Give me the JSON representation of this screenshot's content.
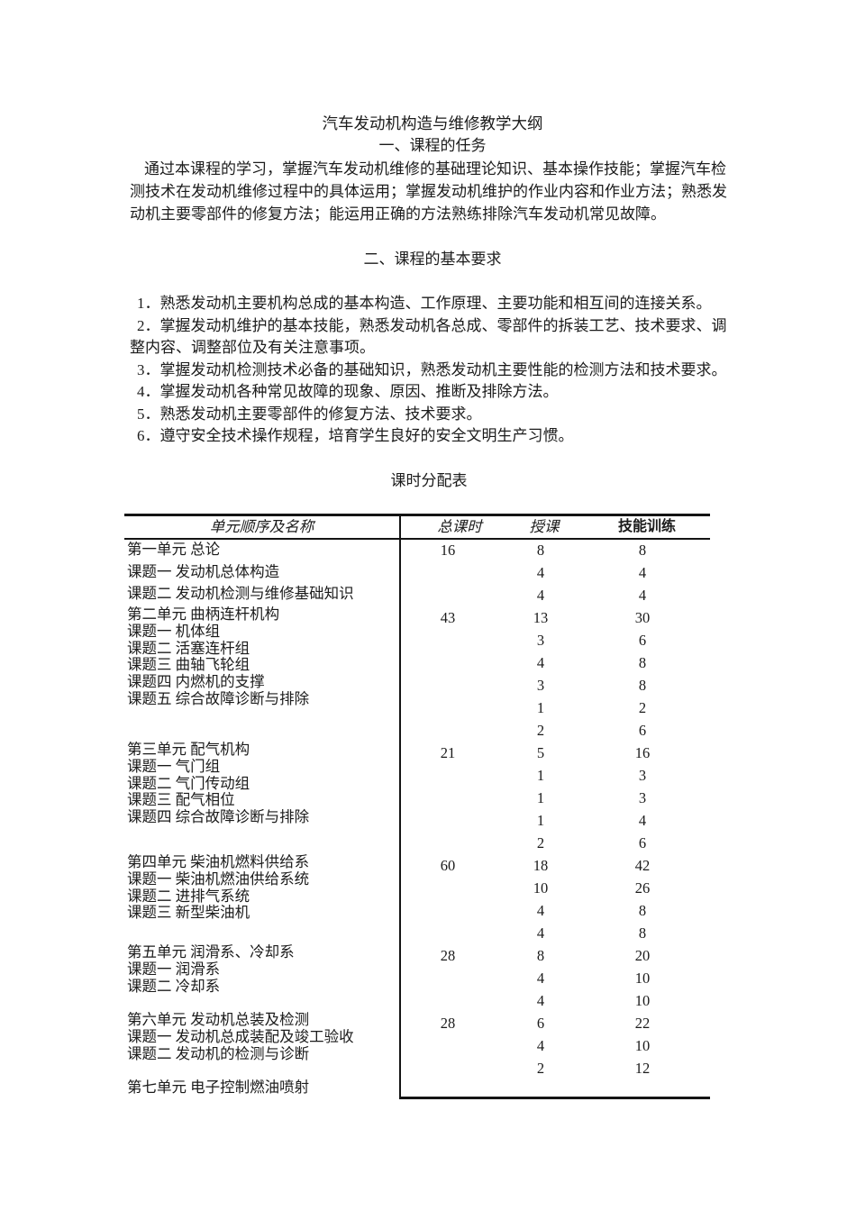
{
  "document": {
    "title": "汽车发动机构造与维修教学大纲",
    "section1": {
      "heading": "一、课程的任务",
      "paragraph_lines": [
        {
          "text": "通过本课程的学习，掌握汽车发动机维修的基础理论知识、基本操作技能；掌握汽车检",
          "indent": true
        },
        {
          "text": "测技术在发动机维修过程中的具体运用；掌握发动机维护的作业内容和作业方法；熟悉发",
          "indent": false
        },
        {
          "text": "动机主要零部件的修复方法；能运用正确的方法熟练排除汽车发动机常见故障。",
          "indent": false
        }
      ]
    },
    "section2": {
      "heading": "二、课程的基本要求",
      "item_lines": [
        {
          "text": "1．熟悉发动机主要机构总成的基本构造、工作原理、主要功能和相互间的连接关系。",
          "indent": true
        },
        {
          "text": "2．掌握发动机维护的基本技能，熟悉发动机各总成、零部件的拆装工艺、技术要求、调",
          "indent": true
        },
        {
          "text": "整内容、调整部位及有关注意事项。",
          "indent": false
        },
        {
          "text": "3．掌握发动机检测技术必备的基础知识，熟悉发动机主要性能的检测方法和技术要求。",
          "indent": true
        },
        {
          "text": "4．掌握发动机各种常见故障的现象、原因、推断及排除方法。",
          "indent": true
        },
        {
          "text": "5．熟悉发动机主要零部件的修复方法、技术要求。",
          "indent": true
        },
        {
          "text": "6．遵守安全技术操作规程，培育学生良好的安全文明生产习惯。",
          "indent": true
        }
      ]
    },
    "table": {
      "title": "课时分配表",
      "headers": [
        "单元顺序及名称",
        "总课时",
        "授课",
        "技能训练"
      ],
      "blocks": [
        {
          "lines": [
            "第一单元 总论",
            "课题一 发动机总体构造",
            "课题二 发动机检测与维修基础知识"
          ],
          "total": "16",
          "hours": [
            [
              "8",
              "8"
            ],
            [
              "4",
              "4"
            ],
            [
              "4",
              "4"
            ]
          ]
        },
        {
          "lines": [
            "第二单元 曲柄连杆机构",
            "课题一 机体组",
            "课题二 活塞连杆组",
            "课题三 曲轴飞轮组",
            "课题四 内燃机的支撑",
            "课题五 综合故障诊断与排除"
          ],
          "total": "43",
          "hours": [
            [
              "13",
              "30"
            ],
            [
              "3",
              "6"
            ],
            [
              "4",
              "8"
            ],
            [
              "3",
              "8"
            ],
            [
              "1",
              "2"
            ],
            [
              "2",
              "6"
            ]
          ]
        },
        {
          "lines": [
            "第三单元 配气机构",
            "课题一 气门组",
            "课题二 气门传动组",
            "课题三 配气相位",
            "课题四 综合故障诊断与排除"
          ],
          "total": "21",
          "hours": [
            [
              "5",
              "16"
            ],
            [
              "1",
              "3"
            ],
            [
              "1",
              "3"
            ],
            [
              "1",
              "4"
            ],
            [
              "2",
              "6"
            ]
          ]
        },
        {
          "lines": [
            "第四单元 柴油机燃料供给系",
            "课题一 柴油机燃油供给系统",
            "课题二 进排气系统",
            "课题三 新型柴油机"
          ],
          "total": "60",
          "hours": [
            [
              "18",
              "42"
            ],
            [
              "10",
              "26"
            ],
            [
              "4",
              "8"
            ],
            [
              "4",
              "8"
            ]
          ]
        },
        {
          "lines": [
            "第五单元 润滑系、冷却系",
            "课题一 润滑系",
            "课题二 冷却系"
          ],
          "total": "28",
          "hours": [
            [
              "8",
              "20"
            ],
            [
              "4",
              "10"
            ],
            [
              "4",
              "10"
            ]
          ]
        },
        {
          "lines": [
            "第六单元 发动机总装及检测",
            "课题一 发动机总成装配及竣工验收",
            "课题二 发动机的检测与诊断"
          ],
          "total": "28",
          "hours": [
            [
              "6",
              "22"
            ],
            [
              "4",
              "10"
            ],
            [
              "2",
              "12"
            ]
          ]
        },
        {
          "lines": [
            "第七单元 电子控制燃油喷射"
          ],
          "total": "",
          "hours": []
        }
      ]
    }
  }
}
